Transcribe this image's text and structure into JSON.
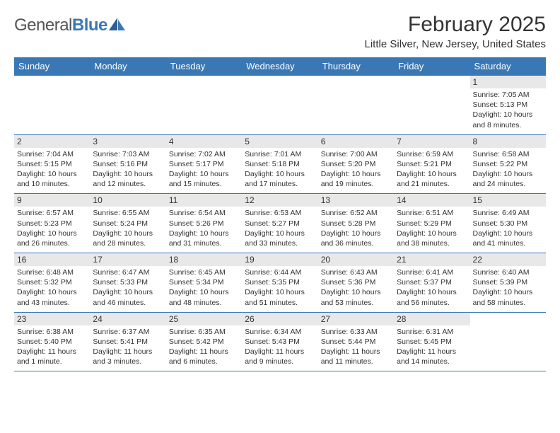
{
  "logo": {
    "text1": "General",
    "text2": "Blue",
    "color1": "#555555",
    "color2": "#3a78b5"
  },
  "title": "February 2025",
  "location": "Little Silver, New Jersey, United States",
  "header_bg": "#3a78b5",
  "header_fg": "#ffffff",
  "daynum_bg": "#e8e8e8",
  "border_color": "#3a78b5",
  "weekdays": [
    "Sunday",
    "Monday",
    "Tuesday",
    "Wednesday",
    "Thursday",
    "Friday",
    "Saturday"
  ],
  "first_weekday_index": 6,
  "num_days": 28,
  "days": {
    "1": {
      "sunrise": "7:05 AM",
      "sunset": "5:13 PM",
      "daylight": "10 hours and 8 minutes."
    },
    "2": {
      "sunrise": "7:04 AM",
      "sunset": "5:15 PM",
      "daylight": "10 hours and 10 minutes."
    },
    "3": {
      "sunrise": "7:03 AM",
      "sunset": "5:16 PM",
      "daylight": "10 hours and 12 minutes."
    },
    "4": {
      "sunrise": "7:02 AM",
      "sunset": "5:17 PM",
      "daylight": "10 hours and 15 minutes."
    },
    "5": {
      "sunrise": "7:01 AM",
      "sunset": "5:18 PM",
      "daylight": "10 hours and 17 minutes."
    },
    "6": {
      "sunrise": "7:00 AM",
      "sunset": "5:20 PM",
      "daylight": "10 hours and 19 minutes."
    },
    "7": {
      "sunrise": "6:59 AM",
      "sunset": "5:21 PM",
      "daylight": "10 hours and 21 minutes."
    },
    "8": {
      "sunrise": "6:58 AM",
      "sunset": "5:22 PM",
      "daylight": "10 hours and 24 minutes."
    },
    "9": {
      "sunrise": "6:57 AM",
      "sunset": "5:23 PM",
      "daylight": "10 hours and 26 minutes."
    },
    "10": {
      "sunrise": "6:55 AM",
      "sunset": "5:24 PM",
      "daylight": "10 hours and 28 minutes."
    },
    "11": {
      "sunrise": "6:54 AM",
      "sunset": "5:26 PM",
      "daylight": "10 hours and 31 minutes."
    },
    "12": {
      "sunrise": "6:53 AM",
      "sunset": "5:27 PM",
      "daylight": "10 hours and 33 minutes."
    },
    "13": {
      "sunrise": "6:52 AM",
      "sunset": "5:28 PM",
      "daylight": "10 hours and 36 minutes."
    },
    "14": {
      "sunrise": "6:51 AM",
      "sunset": "5:29 PM",
      "daylight": "10 hours and 38 minutes."
    },
    "15": {
      "sunrise": "6:49 AM",
      "sunset": "5:30 PM",
      "daylight": "10 hours and 41 minutes."
    },
    "16": {
      "sunrise": "6:48 AM",
      "sunset": "5:32 PM",
      "daylight": "10 hours and 43 minutes."
    },
    "17": {
      "sunrise": "6:47 AM",
      "sunset": "5:33 PM",
      "daylight": "10 hours and 46 minutes."
    },
    "18": {
      "sunrise": "6:45 AM",
      "sunset": "5:34 PM",
      "daylight": "10 hours and 48 minutes."
    },
    "19": {
      "sunrise": "6:44 AM",
      "sunset": "5:35 PM",
      "daylight": "10 hours and 51 minutes."
    },
    "20": {
      "sunrise": "6:43 AM",
      "sunset": "5:36 PM",
      "daylight": "10 hours and 53 minutes."
    },
    "21": {
      "sunrise": "6:41 AM",
      "sunset": "5:37 PM",
      "daylight": "10 hours and 56 minutes."
    },
    "22": {
      "sunrise": "6:40 AM",
      "sunset": "5:39 PM",
      "daylight": "10 hours and 58 minutes."
    },
    "23": {
      "sunrise": "6:38 AM",
      "sunset": "5:40 PM",
      "daylight": "11 hours and 1 minute."
    },
    "24": {
      "sunrise": "6:37 AM",
      "sunset": "5:41 PM",
      "daylight": "11 hours and 3 minutes."
    },
    "25": {
      "sunrise": "6:35 AM",
      "sunset": "5:42 PM",
      "daylight": "11 hours and 6 minutes."
    },
    "26": {
      "sunrise": "6:34 AM",
      "sunset": "5:43 PM",
      "daylight": "11 hours and 9 minutes."
    },
    "27": {
      "sunrise": "6:33 AM",
      "sunset": "5:44 PM",
      "daylight": "11 hours and 11 minutes."
    },
    "28": {
      "sunrise": "6:31 AM",
      "sunset": "5:45 PM",
      "daylight": "11 hours and 14 minutes."
    }
  },
  "labels": {
    "sunrise": "Sunrise: ",
    "sunset": "Sunset: ",
    "daylight": "Daylight: "
  }
}
